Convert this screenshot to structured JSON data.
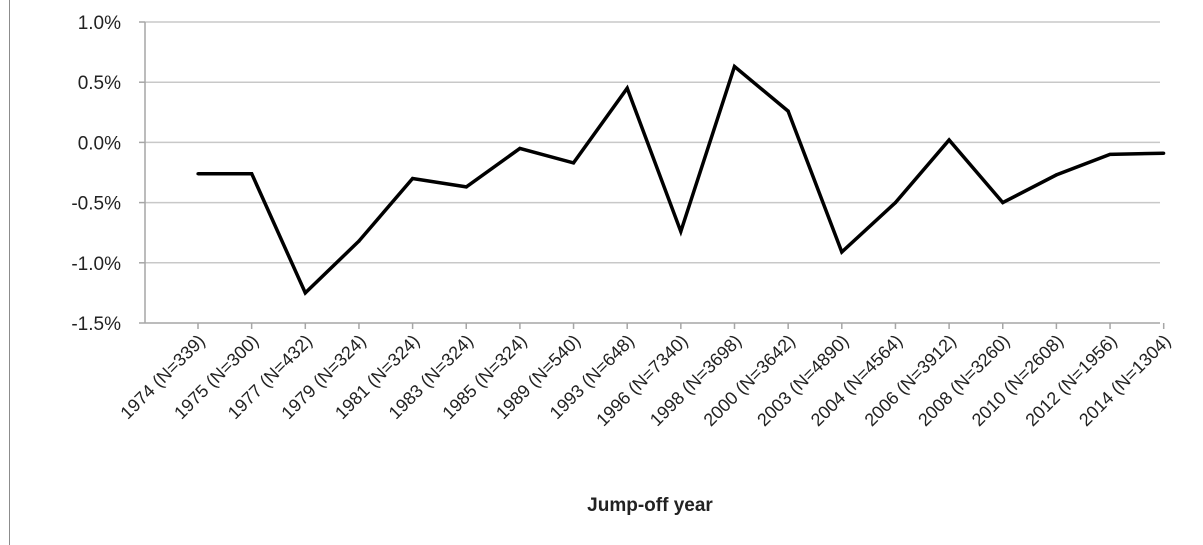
{
  "chart_data": {
    "type": "line",
    "title": "",
    "xlabel": "Jump-off year",
    "ylabel": "",
    "categories": [
      "1974  (N=339)",
      "1975  (N=300)",
      "1977  (N=432)",
      "1979  (N=324)",
      "1981  (N=324)",
      "1983  (N=324)",
      "1985  (N=324)",
      "1989  (N=540)",
      "1993  (N=648)",
      "1996  (N=7340)",
      "1998  (N=3698)",
      "2000  (N=3642)",
      "2003  (N=4890)",
      "2004  (N=4564)",
      "2006  (N=3912)",
      "2008  (N=3260)",
      "2010  (N=2608)",
      "2012  (N=1956)",
      "2014  (N=1304)"
    ],
    "series": [
      {
        "values": [
          -0.26,
          -0.26,
          -1.25,
          -0.82,
          -0.3,
          -0.37,
          -0.05,
          -0.17,
          0.45,
          -0.74,
          0.63,
          0.26,
          -0.91,
          -0.5,
          0.02,
          -0.5,
          -0.27,
          -0.1,
          -0.09
        ],
        "color": "#000000"
      }
    ],
    "ylim": [
      -1.5,
      1.0
    ],
    "yticks": [
      1.0,
      0.5,
      0.0,
      -0.5,
      -1.0,
      -1.5
    ],
    "ytick_labels": [
      "1.0%",
      "0.5%",
      "0.0%",
      "-0.5%",
      "-1.0%",
      "-1.5%"
    ],
    "grid": true,
    "gridline_color": "#c8c8c8",
    "legend": "none"
  }
}
